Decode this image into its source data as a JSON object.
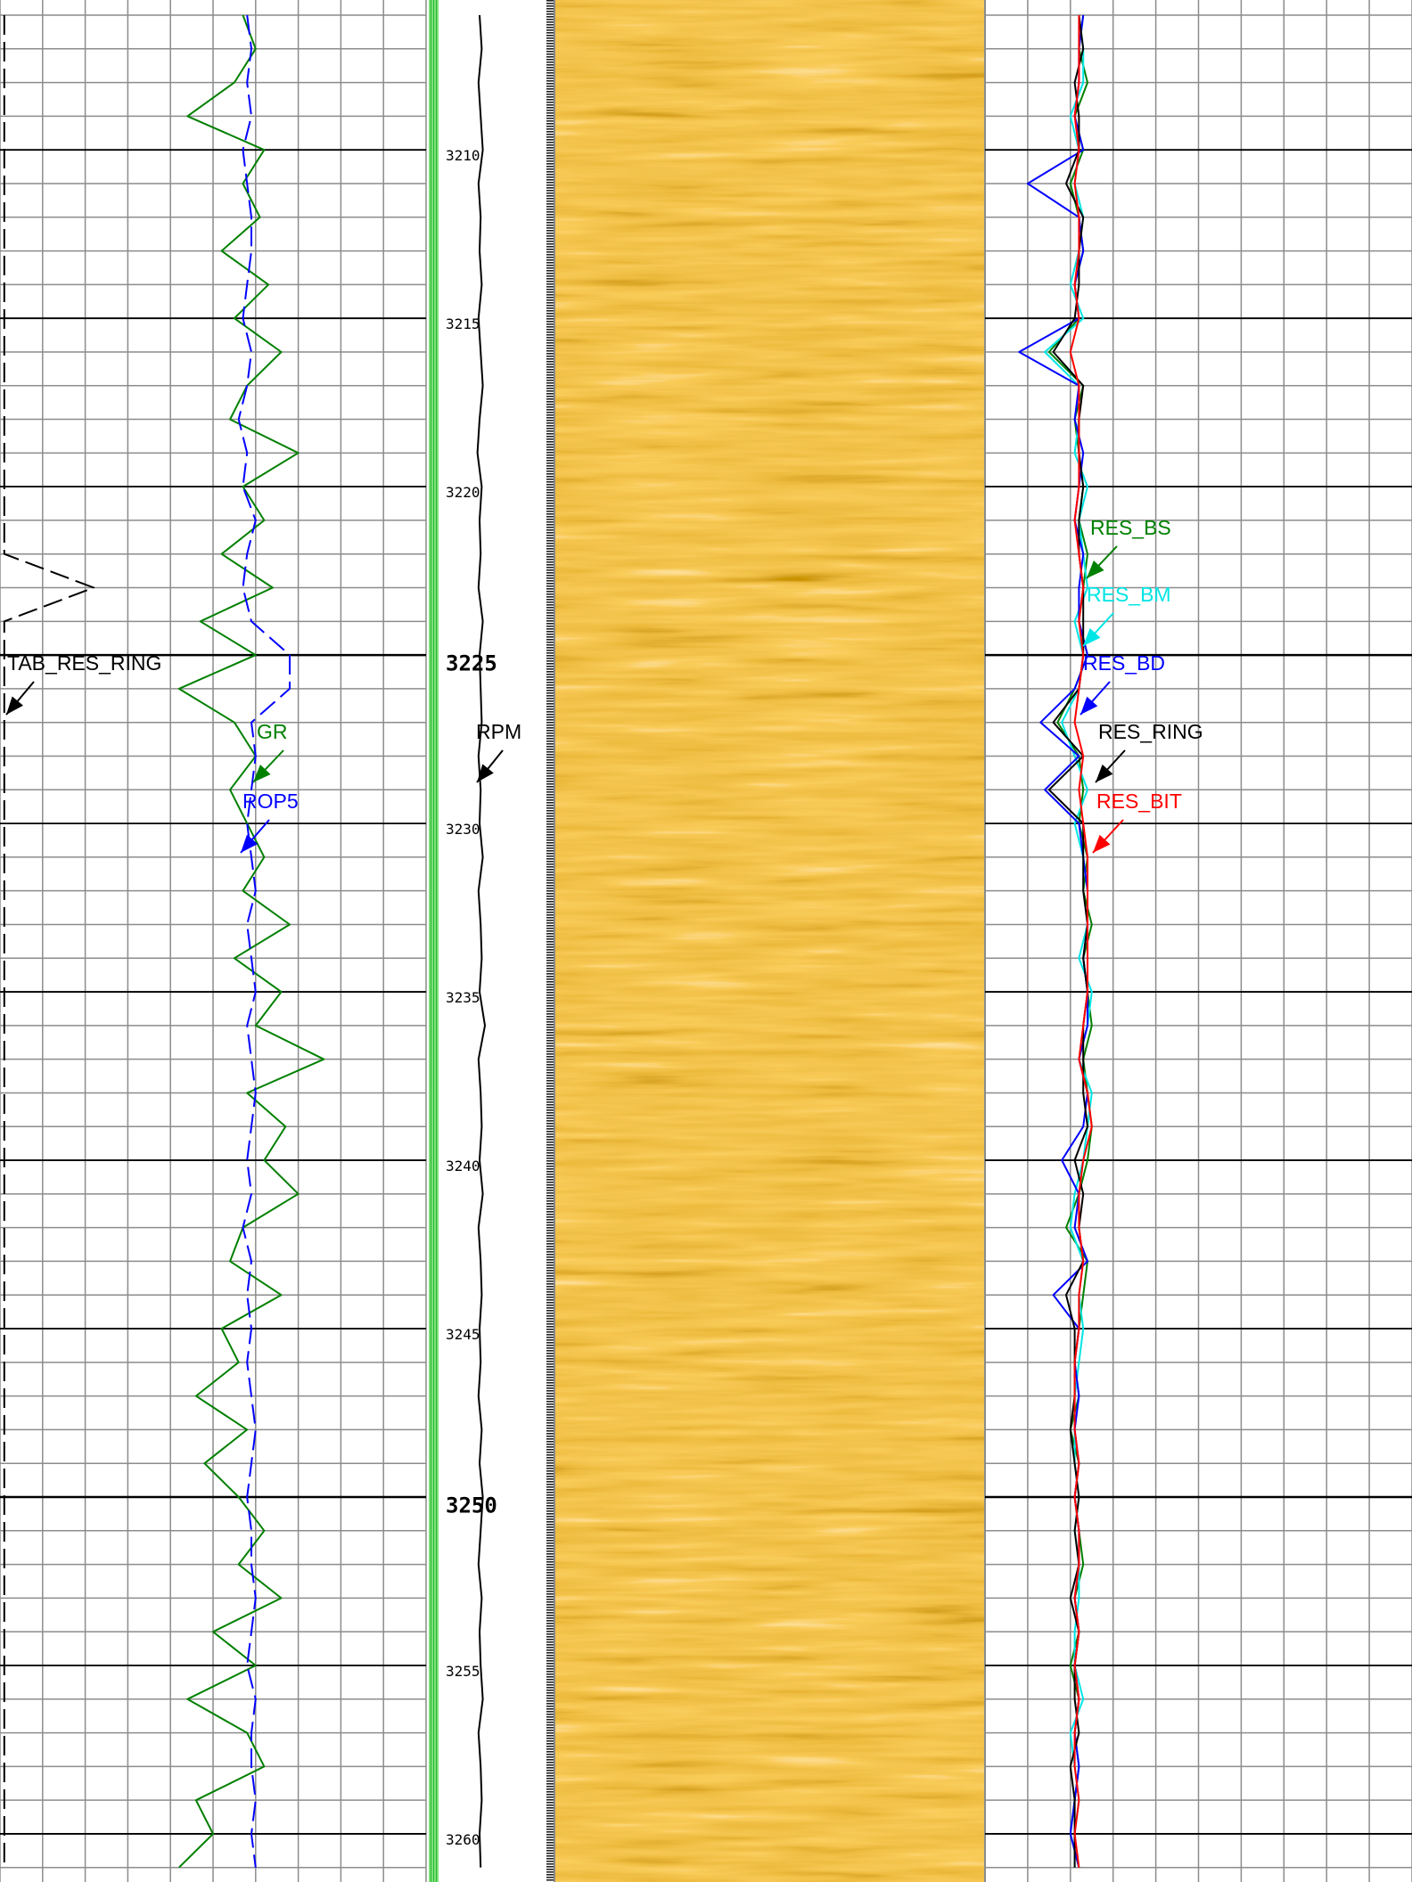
{
  "chart_data": [
    {
      "type": "line",
      "ylim": [
        3205.55,
        3261.43
      ],
      "xlim": [
        0,
        100
      ],
      "grid": true,
      "depth": [
        3206,
        3207,
        3208,
        3209,
        3210,
        3211,
        3212,
        3213,
        3214,
        3215,
        3216,
        3217,
        3218,
        3219,
        3220,
        3221,
        3222,
        3223,
        3224,
        3225,
        3226,
        3227,
        3228,
        3229,
        3230,
        3231,
        3232,
        3233,
        3234,
        3235,
        3236,
        3237,
        3238,
        3239,
        3240,
        3241,
        3242,
        3243,
        3244,
        3245,
        3246,
        3247,
        3248,
        3249,
        3250,
        3251,
        3252,
        3253,
        3254,
        3255,
        3256,
        3257,
        3258,
        3259,
        3260,
        3261
      ],
      "series": [
        {
          "name": "GR",
          "color": "#008000",
          "dash": false,
          "values": [
            57,
            60,
            55,
            44,
            62,
            57,
            61,
            52,
            63,
            55,
            66,
            58,
            54,
            70,
            57,
            62,
            52,
            64,
            47,
            60,
            42,
            55,
            60,
            54,
            58,
            62,
            57,
            68,
            55,
            66,
            60,
            76,
            58,
            67,
            62,
            70,
            57,
            54,
            66,
            52,
            56,
            46,
            58,
            48,
            56,
            62,
            56,
            66,
            50,
            60,
            44,
            58,
            62,
            46,
            50,
            42
          ]
        },
        {
          "name": "ROP5",
          "color": "#0000ff",
          "dash": true,
          "values": [
            58,
            59,
            58,
            59,
            57,
            58,
            59,
            59,
            58,
            57,
            59,
            58,
            56,
            58,
            57,
            60,
            58,
            57,
            59,
            68,
            68,
            59,
            60,
            59,
            58,
            59,
            60,
            58,
            59,
            60,
            58,
            59,
            60,
            59,
            58,
            59,
            57,
            59,
            58,
            59,
            58,
            59,
            60,
            59,
            58,
            59,
            59,
            60,
            59,
            58,
            60,
            59,
            59,
            60,
            59,
            60
          ]
        },
        {
          "name": "TAB_RES_RING",
          "color": "#000000",
          "dash": true,
          "values": [
            1,
            1,
            1,
            1,
            1,
            1,
            1,
            1,
            1,
            1,
            1,
            1,
            1,
            1,
            1,
            1,
            1,
            22,
            1,
            1,
            1,
            1,
            1,
            1,
            1,
            1,
            1,
            1,
            1,
            1,
            1,
            1,
            1,
            1,
            1,
            1,
            1,
            1,
            1,
            1,
            1,
            1,
            1,
            1,
            1,
            1,
            1,
            1,
            1,
            1,
            1,
            1,
            1,
            1,
            1,
            1
          ]
        }
      ]
    },
    {
      "type": "depth",
      "ylim": [
        3205.55,
        3261.43
      ],
      "xlim": [
        0,
        100
      ],
      "yticks": [
        3210,
        3215,
        3220,
        3225,
        3230,
        3235,
        3240,
        3245,
        3250,
        3255,
        3260
      ],
      "depth": [
        3206,
        3207,
        3208,
        3209,
        3210,
        3211,
        3212,
        3213,
        3214,
        3215,
        3216,
        3217,
        3218,
        3219,
        3220,
        3221,
        3222,
        3223,
        3224,
        3225,
        3226,
        3227,
        3228,
        3229,
        3230,
        3231,
        3232,
        3233,
        3234,
        3235,
        3236,
        3237,
        3238,
        3239,
        3240,
        3241,
        3242,
        3243,
        3244,
        3245,
        3246,
        3247,
        3248,
        3249,
        3250,
        3251,
        3252,
        3253,
        3254,
        3255,
        3256,
        3257,
        3258,
        3259,
        3260,
        3261
      ],
      "series": [
        {
          "name": "RPM",
          "color": "#000000",
          "dash": false,
          "values": [
            38,
            40,
            37,
            39,
            41,
            37,
            39,
            38,
            40,
            37,
            39,
            41,
            38,
            36,
            40,
            38,
            39,
            37,
            41,
            38,
            39,
            40,
            37,
            39,
            38,
            41,
            37,
            39,
            40,
            38,
            43,
            37,
            39,
            40,
            38,
            41,
            37,
            39,
            40,
            38,
            39,
            37,
            40,
            38,
            41,
            39,
            37,
            40,
            38,
            39,
            41,
            37,
            39,
            40,
            38,
            39
          ]
        }
      ]
    },
    {
      "type": "line",
      "ylim": [
        3205.55,
        3261.43
      ],
      "xlim": [
        0,
        100
      ],
      "grid": true,
      "depth": [
        3206,
        3207,
        3208,
        3209,
        3210,
        3211,
        3212,
        3213,
        3214,
        3215,
        3216,
        3217,
        3218,
        3219,
        3220,
        3221,
        3222,
        3223,
        3224,
        3225,
        3226,
        3227,
        3228,
        3229,
        3230,
        3231,
        3232,
        3233,
        3234,
        3235,
        3236,
        3237,
        3238,
        3239,
        3240,
        3241,
        3242,
        3243,
        3244,
        3245,
        3246,
        3247,
        3248,
        3249,
        3250,
        3251,
        3252,
        3253,
        3254,
        3255,
        3256,
        3257,
        3258,
        3259,
        3260,
        3261
      ],
      "series": [
        {
          "name": "RES_BS",
          "color": "#008000",
          "dash": false,
          "values": [
            23,
            22,
            24,
            21,
            23,
            20,
            22,
            23,
            21,
            22,
            15,
            23,
            21,
            22,
            23,
            22,
            24,
            23,
            22,
            24,
            21,
            17,
            22,
            23,
            22,
            24,
            23,
            25,
            23,
            24,
            25,
            23,
            24,
            25,
            24,
            22,
            19,
            24,
            23,
            22,
            21,
            22,
            20,
            22,
            21,
            22,
            23,
            21,
            22,
            20,
            22,
            21,
            22,
            21,
            20,
            22
          ]
        },
        {
          "name": "RES_BM",
          "color": "#00e5e5",
          "dash": false,
          "values": [
            22,
            23,
            23,
            20,
            22,
            21,
            23,
            22,
            20,
            23,
            14,
            22,
            22,
            21,
            24,
            22,
            23,
            24,
            21,
            23,
            22,
            18,
            21,
            24,
            21,
            23,
            24,
            24,
            22,
            25,
            24,
            22,
            25,
            24,
            23,
            21,
            20,
            23,
            22,
            23,
            22,
            21,
            21,
            21,
            22,
            21,
            22,
            22,
            21,
            21,
            23,
            20,
            21,
            22,
            21,
            21
          ]
        },
        {
          "name": "RES_BD",
          "color": "#0000ff",
          "dash": false,
          "values": [
            23,
            22,
            22,
            21,
            23,
            10,
            22,
            23,
            21,
            22,
            8,
            22,
            21,
            23,
            22,
            21,
            23,
            22,
            22,
            24,
            21,
            13,
            22,
            14,
            22,
            23,
            24,
            24,
            23,
            24,
            24,
            22,
            24,
            23,
            18,
            22,
            21,
            24,
            16,
            22,
            21,
            22,
            21,
            22,
            21,
            22,
            22,
            21,
            22,
            21,
            22,
            21,
            22,
            21,
            20,
            22
          ]
        },
        {
          "name": "RES_RING",
          "color": "#000000",
          "dash": false,
          "values": [
            22,
            23,
            21,
            22,
            22,
            19,
            23,
            22,
            22,
            21,
            16,
            23,
            22,
            22,
            23,
            22,
            22,
            23,
            23,
            23,
            22,
            16,
            23,
            15,
            23,
            23,
            23,
            24,
            23,
            24,
            23,
            23,
            23,
            24,
            21,
            23,
            22,
            23,
            19,
            21,
            21,
            21,
            20,
            21,
            22,
            21,
            22,
            20,
            22,
            21,
            21,
            22,
            20,
            21,
            21,
            21
          ]
        },
        {
          "name": "RES_BIT",
          "color": "#ff0000",
          "dash": false,
          "values": [
            22,
            22,
            22,
            21,
            22,
            21,
            22,
            22,
            21,
            22,
            20,
            22,
            22,
            22,
            22,
            21,
            22,
            23,
            22,
            23,
            22,
            21,
            23,
            22,
            23,
            24,
            24,
            24,
            24,
            24,
            23,
            22,
            24,
            25,
            23,
            22,
            22,
            23,
            22,
            22,
            21,
            21,
            21,
            22,
            21,
            22,
            22,
            21,
            22,
            21,
            22,
            21,
            21,
            22,
            21,
            22
          ]
        }
      ]
    }
  ]
}
